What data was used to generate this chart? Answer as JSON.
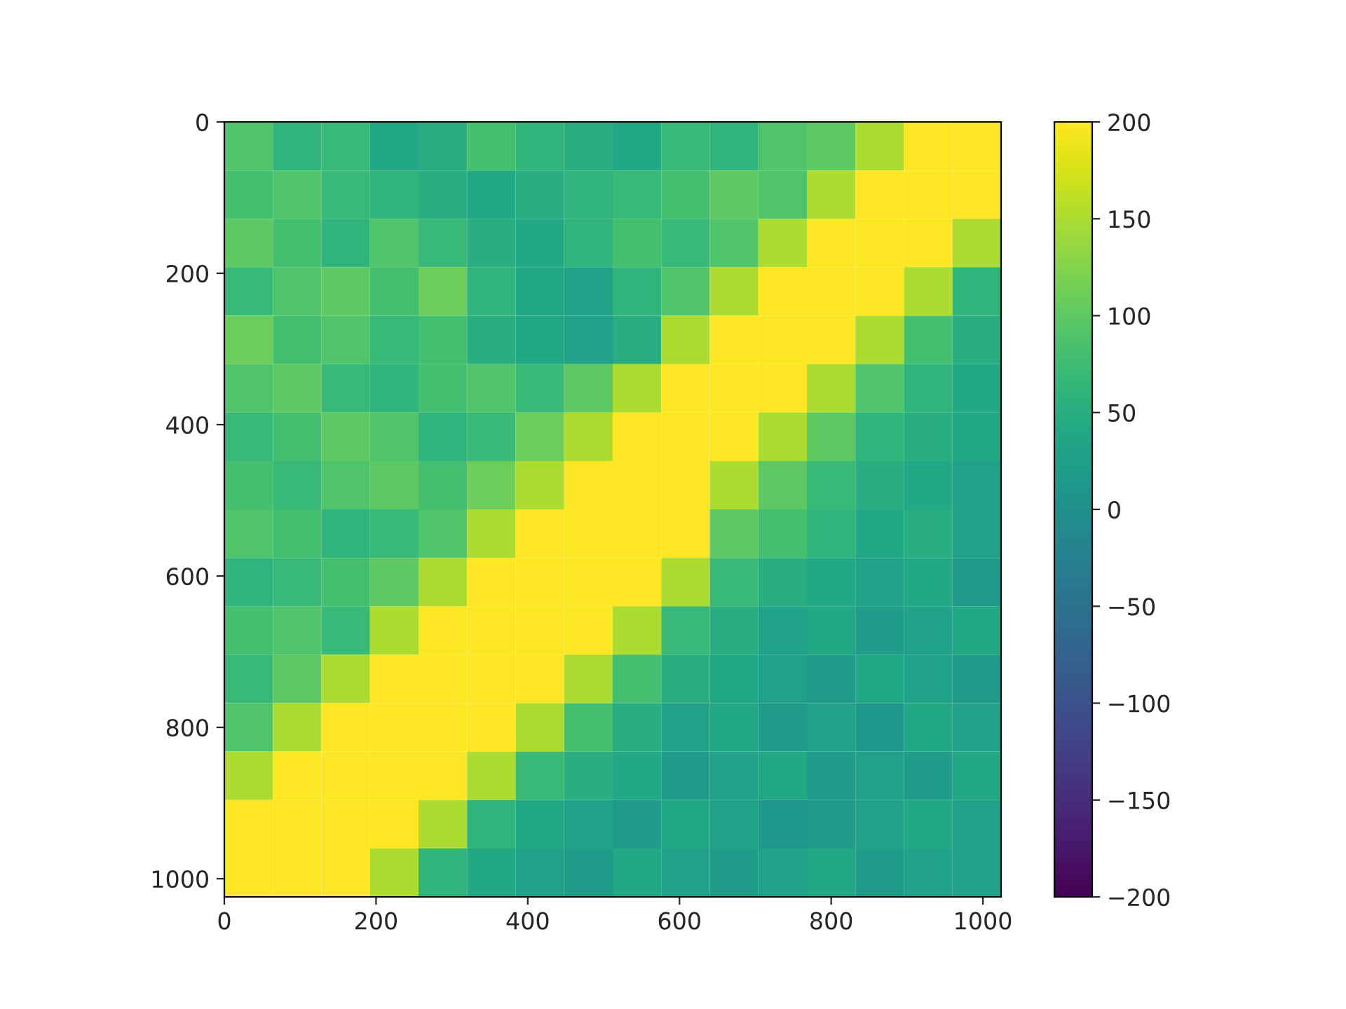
{
  "chart_data": {
    "type": "heatmap",
    "xlim": [
      0,
      1024
    ],
    "ylim": [
      1024,
      0
    ],
    "xticks": [
      0,
      200,
      400,
      600,
      800,
      1000
    ],
    "yticks": [
      0,
      200,
      400,
      600,
      800,
      1000
    ],
    "clim": [
      -200,
      200
    ],
    "cticks": [
      {
        "value": -200,
        "label": "−200"
      },
      {
        "value": -150,
        "label": "−150"
      },
      {
        "value": -100,
        "label": "−100"
      },
      {
        "value": -50,
        "label": "−50"
      },
      0,
      50,
      100,
      150,
      200
    ],
    "cells": [
      [
        90,
        60,
        70,
        40,
        50,
        80,
        60,
        50,
        40,
        70,
        60,
        90,
        100,
        150,
        200,
        200
      ],
      [
        80,
        90,
        70,
        60,
        50,
        40,
        50,
        60,
        70,
        80,
        100,
        90,
        150,
        200,
        200,
        200
      ],
      [
        100,
        80,
        60,
        90,
        70,
        50,
        40,
        60,
        80,
        70,
        90,
        150,
        200,
        200,
        200,
        150
      ],
      [
        70,
        90,
        100,
        80,
        110,
        60,
        40,
        30,
        60,
        90,
        150,
        200,
        200,
        200,
        150,
        60
      ],
      [
        110,
        80,
        90,
        70,
        80,
        50,
        40,
        30,
        50,
        150,
        200,
        200,
        200,
        150,
        80,
        50
      ],
      [
        90,
        100,
        70,
        60,
        80,
        90,
        70,
        100,
        150,
        200,
        200,
        200,
        150,
        90,
        60,
        40
      ],
      [
        70,
        80,
        100,
        90,
        60,
        70,
        110,
        150,
        200,
        200,
        200,
        150,
        100,
        60,
        50,
        40
      ],
      [
        80,
        70,
        90,
        100,
        80,
        110,
        150,
        200,
        200,
        200,
        150,
        100,
        70,
        50,
        40,
        30
      ],
      [
        90,
        80,
        60,
        70,
        90,
        150,
        200,
        200,
        200,
        200,
        100,
        80,
        60,
        40,
        50,
        30
      ],
      [
        60,
        70,
        80,
        100,
        150,
        200,
        200,
        200,
        200,
        150,
        70,
        50,
        40,
        30,
        40,
        20
      ],
      [
        80,
        90,
        70,
        150,
        200,
        200,
        200,
        200,
        150,
        70,
        50,
        30,
        40,
        20,
        30,
        40
      ],
      [
        70,
        100,
        150,
        200,
        200,
        200,
        200,
        150,
        80,
        50,
        40,
        30,
        20,
        40,
        30,
        20
      ],
      [
        90,
        150,
        200,
        200,
        200,
        200,
        150,
        80,
        50,
        30,
        40,
        20,
        30,
        10,
        40,
        30
      ],
      [
        150,
        200,
        200,
        200,
        200,
        150,
        70,
        50,
        40,
        20,
        30,
        40,
        20,
        30,
        20,
        40
      ],
      [
        200,
        200,
        200,
        200,
        150,
        60,
        40,
        30,
        20,
        40,
        30,
        10,
        20,
        30,
        40,
        30
      ],
      [
        200,
        200,
        200,
        150,
        60,
        40,
        30,
        20,
        40,
        30,
        20,
        30,
        40,
        20,
        30,
        30
      ]
    ]
  }
}
